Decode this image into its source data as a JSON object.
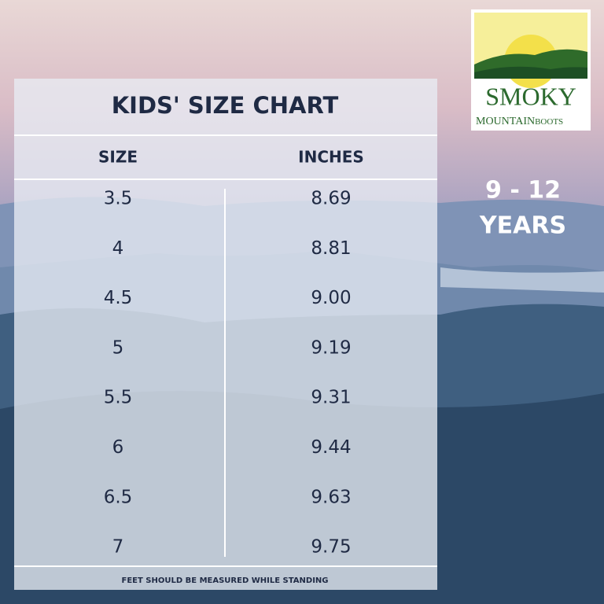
{
  "chart": {
    "title": "KIDS' SIZE CHART",
    "columns": [
      "SIZE",
      "INCHES"
    ],
    "rows": [
      [
        "3.5",
        "8.69"
      ],
      [
        "4",
        "8.81"
      ],
      [
        "4.5",
        "9.00"
      ],
      [
        "5",
        "9.19"
      ],
      [
        "5.5",
        "9.31"
      ],
      [
        "6",
        "9.44"
      ],
      [
        "6.5",
        "9.63"
      ],
      [
        "7",
        "9.75"
      ]
    ],
    "footnote": "FEET SHOULD BE MEASURED WHILE STANDING"
  },
  "age": {
    "range": "9 - 12",
    "unit": "YEARS"
  },
  "logo": {
    "brand": "SMOKY",
    "line1": "MOUNTAIN",
    "line2": "BOOTS"
  }
}
